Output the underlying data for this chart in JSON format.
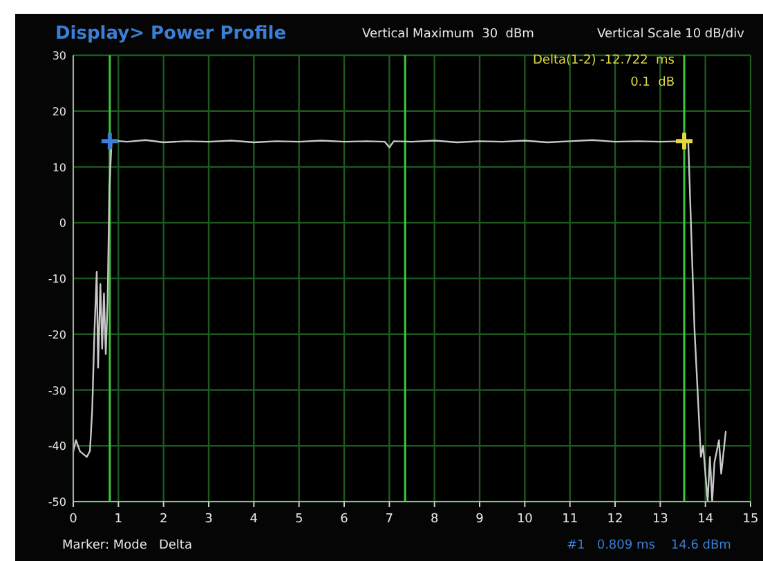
{
  "chart_data": {
    "type": "line",
    "title": "Display> Power Profile",
    "xlim": [
      0,
      15
    ],
    "xticks": [
      0,
      1,
      2,
      3,
      4,
      5,
      6,
      7,
      8,
      9,
      10,
      11,
      12,
      13,
      14,
      15
    ],
    "ylim": [
      -50,
      30
    ],
    "yticks": [
      -50,
      -40,
      -30,
      -20,
      -10,
      0,
      10,
      20,
      30
    ],
    "grid": true,
    "line_style": "solid",
    "series": [
      {
        "color": "#c8c8c8",
        "x": [
          0,
          0.06,
          0.15,
          0.3,
          0.37,
          0.42,
          0.47,
          0.52,
          0.55,
          0.6,
          0.64,
          0.68,
          0.72,
          0.76,
          0.8,
          0.85,
          1.2,
          1.6,
          2.0,
          2.5,
          3.0,
          3.5,
          4.0,
          4.5,
          5.0,
          5.5,
          6.0,
          6.5,
          6.9,
          7.0,
          7.1,
          7.5,
          8.0,
          8.5,
          9.0,
          9.5,
          10.0,
          10.5,
          11.0,
          11.5,
          12.0,
          12.5,
          13.0,
          13.5,
          13.62,
          13.72,
          13.76,
          13.82,
          13.9,
          13.95,
          14.0,
          14.05,
          14.1,
          14.15,
          14.2,
          14.3,
          14.35,
          14.45
        ],
        "values": [
          -41,
          -39,
          -41,
          -42,
          -40.9,
          -33.5,
          -19.4,
          -8.8,
          -26,
          -11,
          -22.6,
          -12.7,
          -23.6,
          -14.4,
          6,
          14.7,
          14.5,
          14.8,
          14.4,
          14.6,
          14.5,
          14.7,
          14.4,
          14.6,
          14.5,
          14.7,
          14.5,
          14.6,
          14.5,
          13.5,
          14.6,
          14.5,
          14.7,
          14.4,
          14.6,
          14.5,
          14.7,
          14.4,
          14.6,
          14.8,
          14.5,
          14.6,
          14.5,
          14.6,
          14.6,
          -10,
          -19.4,
          -29,
          -42,
          -40,
          -45,
          -50,
          -42,
          -50,
          -43,
          -39,
          -45,
          -37.5
        ]
      },
      {
        "type": "scatter",
        "marker": "cross",
        "color": "#3a7fd5",
        "x": [
          0.809
        ],
        "values": [
          14.6
        ]
      },
      {
        "type": "scatter",
        "marker": "cross",
        "color": "#e0d840",
        "x": [
          13.531
        ],
        "values": [
          14.6
        ]
      }
    ],
    "ref_lines": [
      {
        "axis": "x",
        "value": 0.809,
        "color": "#3cc83c"
      },
      {
        "axis": "x",
        "value": 7.35,
        "color": "#3cc83c"
      },
      {
        "axis": "x",
        "value": 13.531,
        "color": "#3cc83c"
      }
    ],
    "annotations": [
      "Vertical Maximum  30  dBm",
      "Vertical Scale 10 dB/div",
      "Delta(1-2) -12.722  ms",
      "0.1  dB",
      "Marker: Mode   Delta",
      "#1   0.809 ms    14.6 dBm"
    ]
  }
}
